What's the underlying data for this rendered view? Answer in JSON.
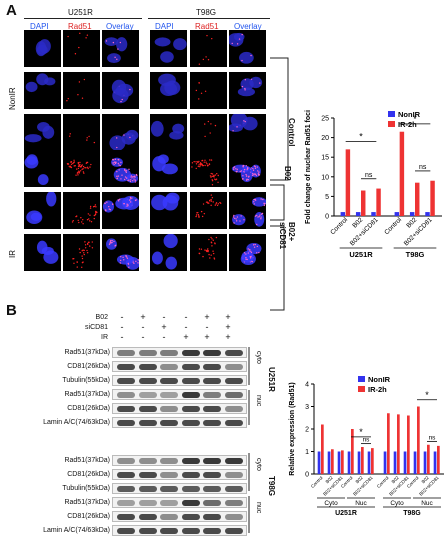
{
  "panelA": {
    "letter": "A",
    "group_left": "U251R",
    "group_right": "T98G",
    "col_dapi": "DAPI",
    "col_rad51": "Rad51",
    "col_overlay": "Overlay",
    "side_nonir": "NonIR",
    "side_ir": "IR",
    "right_control": "Control",
    "right_b02": "B02",
    "right_b02_sicd81_a": "B02+",
    "right_b02_sicd81_b": "siCD81"
  },
  "panelB": {
    "letter": "B",
    "cond_b02": "B02",
    "cond_sicd81": "siCD81",
    "cond_ir": "IR",
    "signs": [
      [
        "-",
        "+",
        "-",
        "-",
        "+",
        "+"
      ],
      [
        "-",
        "-",
        "+",
        "-",
        "-",
        "+"
      ],
      [
        "-",
        "-",
        "-",
        "+",
        "+",
        "+"
      ]
    ],
    "rows_u251": [
      "Rad51(37kDa)",
      "CD81(26kDa)",
      "Tubulin(55kDa)",
      "Rad51(37kDa)",
      "CD81(26kDa)",
      "Lamin A/C(74/63kDa)"
    ],
    "rows_t98": [
      "Rad51(37kDa)",
      "CD81(26kDa)",
      "Tubulin(55kDa)",
      "Rad51(37kDa)",
      "CD81(26kDa)",
      "Lamin A/C(74/63kDa)"
    ],
    "cyto": "cyto",
    "nuc": "nuc",
    "cell_u251": "U251R",
    "cell_t98": "T98G"
  },
  "chart_data": [
    {
      "type": "bar",
      "ylabel": "Fold change of nuclear Rad51 foci",
      "ylim": [
        0,
        25
      ],
      "yticks": [
        "0",
        "5",
        "10",
        "15",
        "20",
        "25"
      ],
      "categories": [
        "Control",
        "B02",
        "B02+siCD81",
        "Control",
        "B02",
        "B02+siCD81"
      ],
      "groups": [
        "U251R",
        "T98G"
      ],
      "series": [
        {
          "name": "NonIR",
          "color": "#3333ee",
          "values": [
            1,
            1,
            1,
            1,
            1,
            1
          ]
        },
        {
          "name": "IR-2h",
          "color": "#ee3333",
          "values": [
            17,
            6.5,
            7,
            21.5,
            8.5,
            9
          ]
        }
      ],
      "annotations": [
        "*",
        "ns",
        "*",
        "ns"
      ],
      "legend": "top-right"
    },
    {
      "type": "bar",
      "ylabel": "Relative expression (Rad51)",
      "ylim": [
        0,
        4
      ],
      "yticks": [
        "0",
        "1",
        "2",
        "3",
        "4"
      ],
      "categories": [
        "Control",
        "B02",
        "B02+siCD81",
        "Control",
        "B02",
        "B02+siCD81",
        "Control",
        "B02",
        "B02+siCD81",
        "Control",
        "B02",
        "B02+siCD81"
      ],
      "fractions": [
        "Cyto",
        "Nuc",
        "Cyto",
        "Nuc"
      ],
      "groups": [
        "U251R",
        "T98G"
      ],
      "series": [
        {
          "name": "NonIR",
          "color": "#3333ee",
          "values": [
            1,
            1,
            1,
            1,
            1,
            1,
            1,
            1,
            1,
            1,
            1,
            1
          ]
        },
        {
          "name": "IR-2h",
          "color": "#ee3333",
          "values": [
            2.2,
            1.1,
            1.05,
            2.0,
            1.2,
            1.15,
            2.7,
            2.65,
            2.6,
            3.0,
            1.3,
            1.25
          ]
        }
      ],
      "annotations": [
        "*",
        "ns",
        "*",
        "ns"
      ],
      "legend": "top-right"
    }
  ]
}
